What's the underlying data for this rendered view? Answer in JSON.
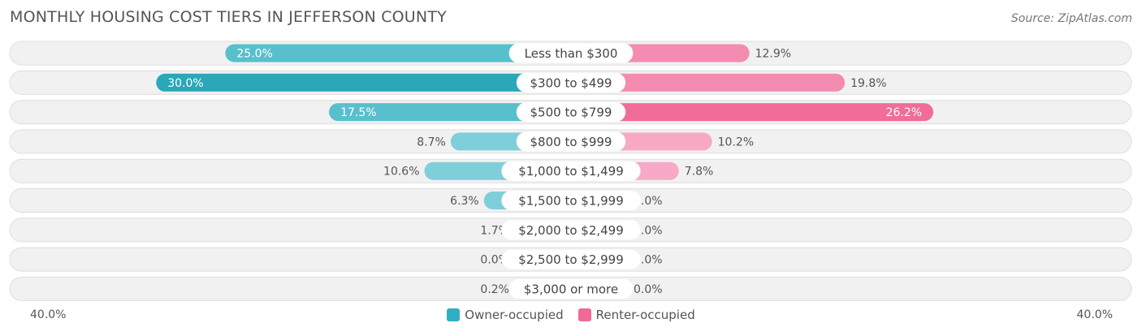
{
  "title": "MONTHLY HOUSING COST TIERS IN JEFFERSON COUNTY",
  "source": "Source: ZipAtlas.com",
  "axis": {
    "left_label": "40.0%",
    "right_label": "40.0%"
  },
  "legend": [
    {
      "name": "Owner-occupied",
      "color": "#2fb0c2"
    },
    {
      "name": "Renter-occupied",
      "color": "#f06a97"
    }
  ],
  "chart_data": {
    "type": "bar",
    "orientation": "horizontal-diverging",
    "categories": [
      "Less than $300",
      "$300 to $499",
      "$500 to $799",
      "$800 to $999",
      "$1,000 to $1,499",
      "$1,500 to $1,999",
      "$2,000 to $2,499",
      "$2,500 to $2,999",
      "$3,000 or more"
    ],
    "series": [
      {
        "name": "Owner-occupied",
        "values": [
          25.0,
          30.0,
          17.5,
          8.7,
          10.6,
          6.3,
          1.7,
          0.0,
          0.2
        ],
        "labels": [
          "25.0%",
          "30.0%",
          "17.5%",
          "8.7%",
          "10.6%",
          "6.3%",
          "1.7%",
          "0.0%",
          "0.2%"
        ]
      },
      {
        "name": "Renter-occupied",
        "values": [
          12.9,
          19.8,
          26.2,
          10.2,
          7.8,
          0.0,
          0.0,
          0.0,
          0.0
        ],
        "labels": [
          "12.9%",
          "19.8%",
          "26.2%",
          "10.2%",
          "7.8%",
          "0.0%",
          "0.0%",
          "0.0%",
          "0.0%"
        ]
      }
    ],
    "xlim": [
      -40,
      40
    ],
    "legend_position": "bottom-center"
  }
}
